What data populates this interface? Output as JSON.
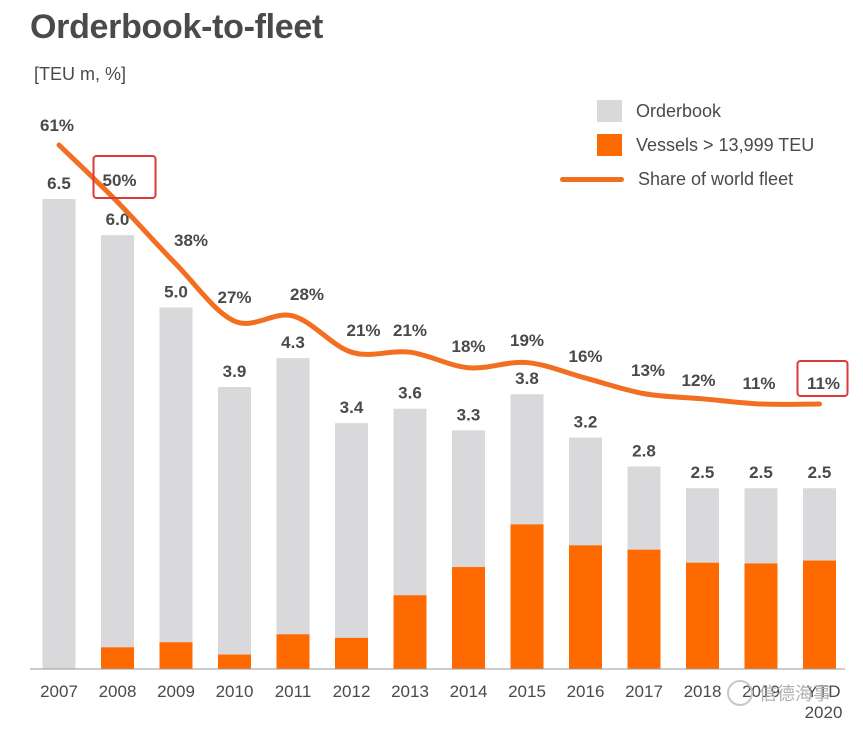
{
  "title": "Orderbook-to-fleet",
  "unit_label": "[TEU m, %]",
  "colors": {
    "orderbook": "#d9d9db",
    "vessels": "#ff6a00",
    "share_line": "#f26f21",
    "highlight_box": "#d93a3a",
    "text": "#4a4a4a"
  },
  "legend": [
    {
      "key": "orderbook",
      "label": "Orderbook"
    },
    {
      "key": "vessels",
      "label": "Vessels > 13,999 TEU"
    },
    {
      "key": "share_line",
      "label": "Share of world fleet"
    }
  ],
  "watermark": "信德海事",
  "chart_data": {
    "type": "bar",
    "categories": [
      "2007",
      "2008",
      "2009",
      "2010",
      "2011",
      "2012",
      "2013",
      "2014",
      "2015",
      "2016",
      "2017",
      "2018",
      "2019",
      "YTD 2020"
    ],
    "series": [
      {
        "name": "Orderbook",
        "type": "bar",
        "values": [
          6.5,
          6.0,
          5.0,
          3.9,
          4.3,
          3.4,
          3.6,
          3.3,
          3.8,
          3.2,
          2.8,
          2.5,
          2.5,
          2.5
        ],
        "labels": [
          "6.5",
          "6.0",
          "5.0",
          "3.9",
          "4.3",
          "3.4",
          "3.6",
          "3.3",
          "3.8",
          "3.2",
          "2.8",
          "2.5",
          "2.5",
          "2.5"
        ]
      },
      {
        "name": "Vessels > 13,999 TEU",
        "type": "bar",
        "values": [
          0.0,
          0.3,
          0.37,
          0.2,
          0.48,
          0.43,
          1.02,
          1.41,
          2.0,
          1.71,
          1.65,
          1.47,
          1.46,
          1.5
        ]
      },
      {
        "name": "Share of world fleet",
        "type": "line",
        "unit": "%",
        "values": [
          61,
          50,
          38,
          27,
          28,
          21,
          21,
          18,
          19,
          16,
          13,
          12,
          11,
          11
        ],
        "labels": [
          "61%",
          "50%",
          "38%",
          "27%",
          "28%",
          "21%",
          "21%",
          "18%",
          "19%",
          "16%",
          "13%",
          "12%",
          "11%",
          "11%"
        ]
      }
    ],
    "ylim": [
      0,
      6.5
    ],
    "highlighted": [
      "2008",
      "YTD 2020"
    ]
  }
}
